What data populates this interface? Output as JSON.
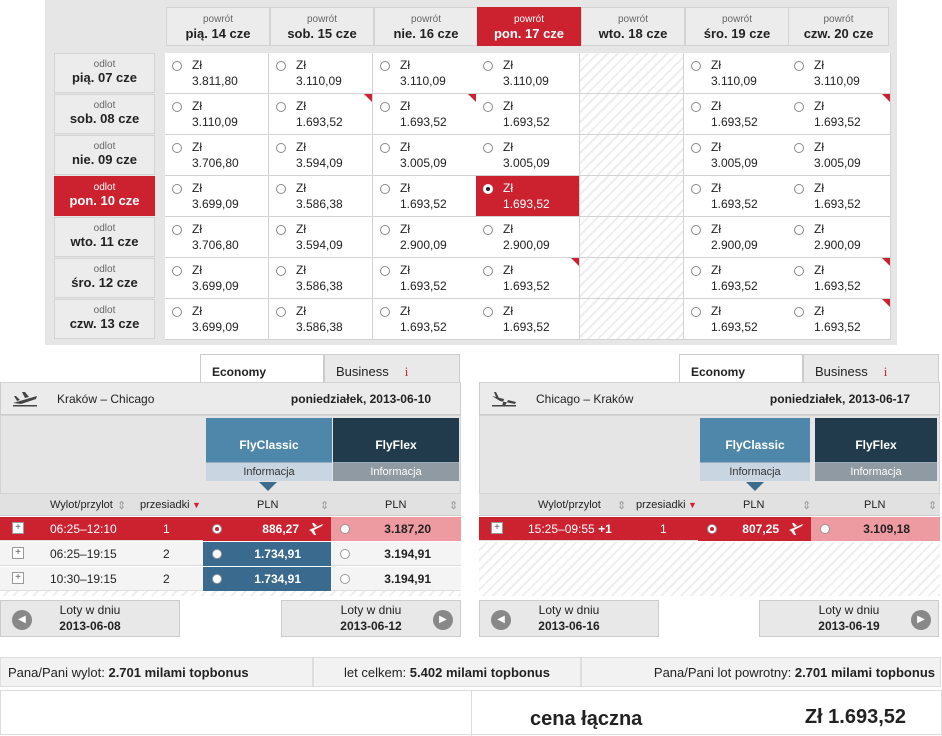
{
  "calendar": {
    "return_label": "powrót",
    "depart_label": "odlot",
    "currency": "Zł",
    "columns": [
      "pią. 14 cze",
      "sob. 15 cze",
      "nie. 16 cze",
      "pon. 17 cze",
      "wto. 18 cze",
      "śro. 19 cze",
      "czw. 20 cze"
    ],
    "rows": [
      "pią. 07 cze",
      "sob. 08 cze",
      "nie. 09 cze",
      "pon. 10 cze",
      "wto. 11 cze",
      "śro. 12 cze",
      "czw. 13 cze"
    ],
    "selected_row": 3,
    "selected_col": 3,
    "prices": [
      [
        "3.811,80",
        "3.110,09",
        "3.110,09",
        "3.110,09",
        null,
        "3.110,09",
        "3.110,09"
      ],
      [
        "3.110,09",
        "1.693,52",
        "1.693,52",
        "1.693,52",
        null,
        "1.693,52",
        "1.693,52"
      ],
      [
        "3.706,80",
        "3.594,09",
        "3.005,09",
        "3.005,09",
        null,
        "3.005,09",
        "3.005,09"
      ],
      [
        "3.699,09",
        "3.586,38",
        "1.693,52",
        "1.693,52",
        null,
        "1.693,52",
        "1.693,52"
      ],
      [
        "3.706,80",
        "3.594,09",
        "2.900,09",
        "2.900,09",
        null,
        "2.900,09",
        "2.900,09"
      ],
      [
        "3.699,09",
        "3.586,38",
        "1.693,52",
        "1.693,52",
        null,
        "1.693,52",
        "1.693,52"
      ],
      [
        "3.699,09",
        "3.586,38",
        "1.693,52",
        "1.693,52",
        null,
        "1.693,52",
        "1.693,52"
      ]
    ],
    "cheapest_markers": [
      [
        1,
        1
      ],
      [
        1,
        2
      ],
      [
        1,
        6
      ],
      [
        5,
        3
      ],
      [
        5,
        6
      ],
      [
        6,
        6
      ]
    ]
  },
  "tabs": {
    "economy": "Economy",
    "business": "Business",
    "info_mark": "i"
  },
  "fare_classes": {
    "classic": "FlyClassic",
    "flex": "FlyFlex",
    "info": "Informacja"
  },
  "table_headers": {
    "departure_arrival": "Wylot/przylot",
    "stops": "przesiadki",
    "pln": "PLN"
  },
  "outbound": {
    "route": "Kraków – Chicago",
    "date": "poniedziałek, 2013-06-10",
    "flights": [
      {
        "time": "06:25–12:10",
        "stops": "1",
        "classic": "886,27",
        "flex": "3.187,20",
        "selected": true
      },
      {
        "time": "06:25–19:15",
        "stops": "2",
        "classic": "1.734,91",
        "flex": "3.194,91",
        "selected": false
      },
      {
        "time": "10:30–19:15",
        "stops": "2",
        "classic": "1.734,91",
        "flex": "3.194,91",
        "selected": false
      }
    ],
    "prev_day": {
      "label": "Loty w dniu",
      "date": "2013-06-08"
    },
    "next_day": {
      "label": "Loty w dniu",
      "date": "2013-06-12"
    }
  },
  "inbound": {
    "route": "Chicago – Kraków",
    "date": "poniedziałek, 2013-06-17",
    "flights": [
      {
        "time": "15:25–09:55",
        "plus_day": "+1",
        "stops": "1",
        "classic": "807,25",
        "flex": "3.109,18",
        "selected": true
      }
    ],
    "prev_day": {
      "label": "Loty w dniu",
      "date": "2013-06-16"
    },
    "next_day": {
      "label": "Loty w dniu",
      "date": "2013-06-19"
    }
  },
  "miles": {
    "outbound_label": "Pana/Pani wylot:",
    "outbound_value": "2.701 milami topbonus",
    "total_label": "let celkem:",
    "total_value": "5.402 milami topbonus",
    "return_label": "Pana/Pani lot powrotny:",
    "return_value": "2.701 milami topbonus"
  },
  "total": {
    "label": "cena łączna",
    "amount": "Zł 1.693,52"
  },
  "colors": {
    "accent": "#cc2230",
    "classic": "#4f87ab",
    "flex": "#213b4d"
  }
}
